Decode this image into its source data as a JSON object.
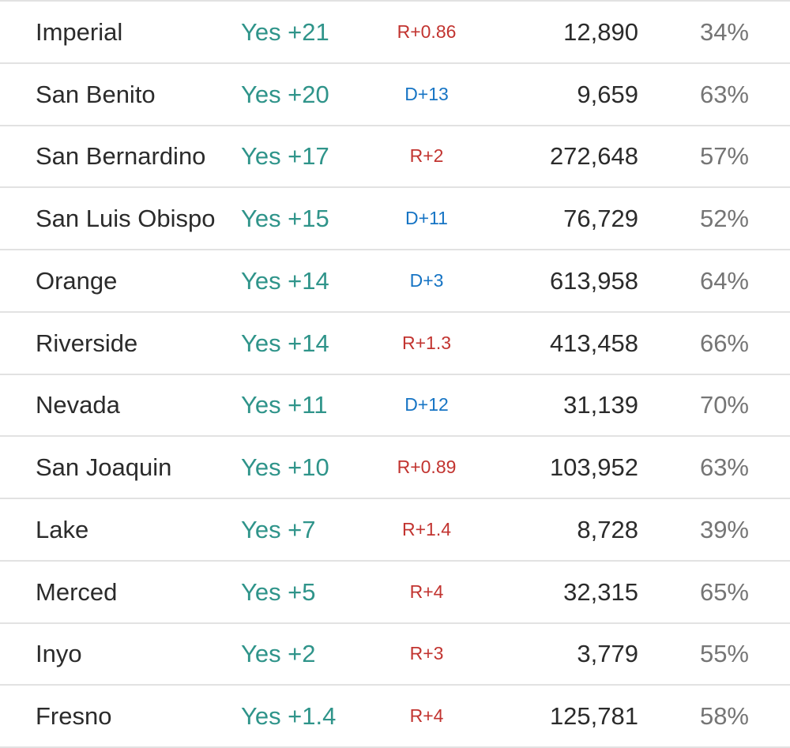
{
  "colors": {
    "yes_margin_teal": "#2f948a",
    "republican_lean_red": "#c23430",
    "democratic_lean_blue": "#1674c4",
    "county_text": "#2b2b2b",
    "votes_text": "#2b2b2b",
    "pct_text": "#757575",
    "row_divider": "#e2e2e2",
    "background": "#ffffff"
  },
  "chart_data": {
    "type": "table",
    "column_keys": [
      "county",
      "margin",
      "lean",
      "votes",
      "pct"
    ],
    "rows": [
      {
        "county": "Imperial",
        "margin": "Yes +21",
        "lean": "R+0.86",
        "party": "rep",
        "votes": "12,890",
        "pct": "34%"
      },
      {
        "county": "San Benito",
        "margin": "Yes +20",
        "lean": "D+13",
        "party": "dem",
        "votes": "9,659",
        "pct": "63%"
      },
      {
        "county": "San Bernardino",
        "margin": "Yes +17",
        "lean": "R+2",
        "party": "rep",
        "votes": "272,648",
        "pct": "57%"
      },
      {
        "county": "San Luis Obispo",
        "margin": "Yes +15",
        "lean": "D+11",
        "party": "dem",
        "votes": "76,729",
        "pct": "52%"
      },
      {
        "county": "Orange",
        "margin": "Yes +14",
        "lean": "D+3",
        "party": "dem",
        "votes": "613,958",
        "pct": "64%"
      },
      {
        "county": "Riverside",
        "margin": "Yes +14",
        "lean": "R+1.3",
        "party": "rep",
        "votes": "413,458",
        "pct": "66%"
      },
      {
        "county": "Nevada",
        "margin": "Yes +11",
        "lean": "D+12",
        "party": "dem",
        "votes": "31,139",
        "pct": "70%"
      },
      {
        "county": "San Joaquin",
        "margin": "Yes +10",
        "lean": "R+0.89",
        "party": "rep",
        "votes": "103,952",
        "pct": "63%"
      },
      {
        "county": "Lake",
        "margin": "Yes +7",
        "lean": "R+1.4",
        "party": "rep",
        "votes": "8,728",
        "pct": "39%"
      },
      {
        "county": "Merced",
        "margin": "Yes +5",
        "lean": "R+4",
        "party": "rep",
        "votes": "32,315",
        "pct": "65%"
      },
      {
        "county": "Inyo",
        "margin": "Yes +2",
        "lean": "R+3",
        "party": "rep",
        "votes": "3,779",
        "pct": "55%"
      },
      {
        "county": "Fresno",
        "margin": "Yes +1.4",
        "lean": "R+4",
        "party": "rep",
        "votes": "125,781",
        "pct": "58%"
      }
    ]
  }
}
